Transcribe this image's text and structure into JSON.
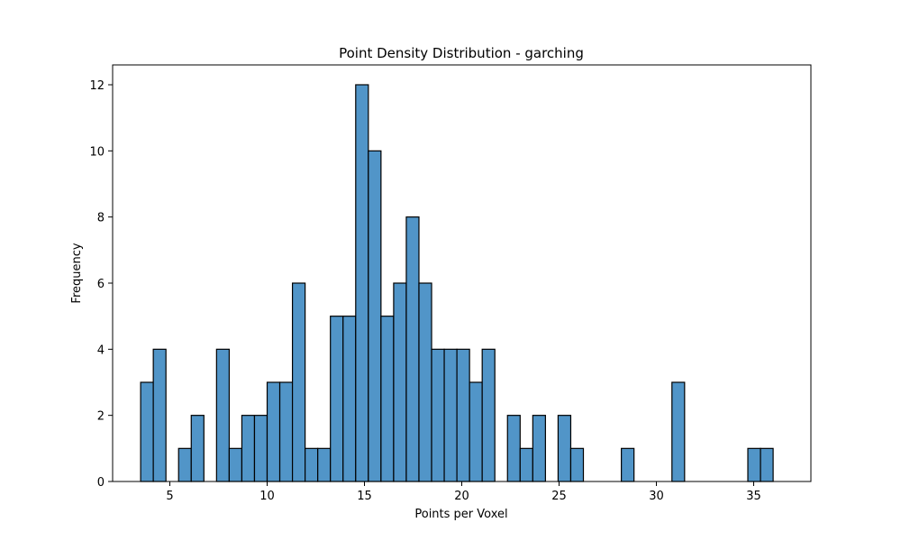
{
  "chart_data": {
    "type": "bar",
    "title": "Point Density Distribution - garching",
    "xlabel": "Points per Voxel",
    "ylabel": "Frequency",
    "xlim": [
      2.06,
      37.94
    ],
    "ylim": [
      0,
      12.6
    ],
    "xticks": [
      5,
      10,
      15,
      20,
      25,
      30,
      35
    ],
    "yticks": [
      0,
      2,
      4,
      6,
      8,
      10,
      12
    ],
    "bin_width": 0.65,
    "bin_start": 3.5,
    "values": [
      3,
      4,
      0,
      1,
      2,
      0,
      4,
      1,
      2,
      2,
      3,
      3,
      6,
      1,
      1,
      5,
      5,
      12,
      10,
      5,
      6,
      8,
      6,
      4,
      4,
      4,
      3,
      4,
      0,
      2,
      1,
      2,
      0,
      2,
      1,
      0,
      0,
      0,
      1,
      0,
      0,
      0,
      3,
      0,
      0,
      0,
      0,
      0,
      1,
      1
    ],
    "color": "#5195c8",
    "grid": false,
    "legend": "none"
  }
}
